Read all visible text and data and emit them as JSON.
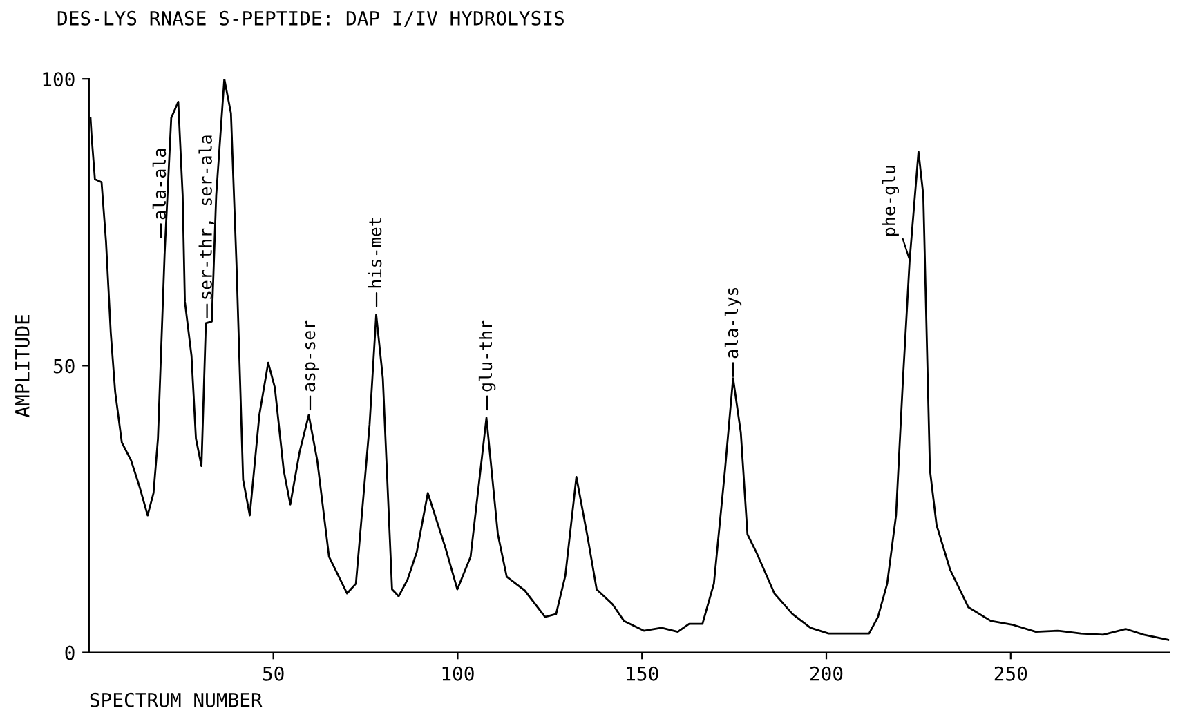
{
  "chart_data": {
    "type": "line",
    "title": "DES-LYS RNASE S-PEPTIDE: DAP I/IV HYDROLYSIS",
    "xlabel": "SPECTRUM NUMBER",
    "ylabel": "AMPLITUDE",
    "xlim": [
      0,
      293
    ],
    "xticks": [
      50,
      100,
      150,
      200,
      250
    ],
    "ylim": [
      0,
      100
    ],
    "yticks": [
      0,
      50,
      100
    ],
    "grid": false,
    "legend": false,
    "series": [
      {
        "color": "#000000",
        "x": [
          0.4,
          0.7,
          1.6,
          3.4,
          4.6,
          5.9,
          7.1,
          8.9,
          11.4,
          13.8,
          15.9,
          17.5,
          18.7,
          20.5,
          22.3,
          24.2,
          25.4,
          26,
          27.8,
          29,
          30.5,
          31.7,
          33.3,
          34.5,
          36.7,
          38.5,
          40,
          41.8,
          43.6,
          46.2,
          48.6,
          50.4,
          52.8,
          54.6,
          57.1,
          59.6,
          61.9,
          65.1,
          70,
          72.4,
          76.1,
          77.9,
          79.7,
          82.2,
          84,
          86.4,
          88.9,
          91.9,
          96.7,
          99.9,
          103.5,
          107.8,
          110.9,
          113.3,
          118.2,
          123.7,
          126.7,
          129.2,
          132.2,
          135.3,
          137.7,
          142,
          145.1,
          150.5,
          155.3,
          159.7,
          162.8,
          166.4,
          169.5,
          172.5,
          174.7,
          176.8,
          178.6,
          181,
          185.9,
          190.8,
          195.7,
          200.6,
          206.7,
          211.6,
          214,
          216.5,
          218.9,
          220.8,
          222.6,
          225,
          226.3,
          228.1,
          229.9,
          233.6,
          238.5,
          244.6,
          250.7,
          256.8,
          262.9,
          269,
          275.1,
          281.2,
          286.1,
          292.8
        ],
        "values": [
          93.2,
          90,
          82.5,
          82,
          71.7,
          55.7,
          45.4,
          36.6,
          33.5,
          28.7,
          23.9,
          27.8,
          37.3,
          69.4,
          93.2,
          96,
          79.7,
          61.2,
          51.7,
          37.3,
          32.5,
          57.4,
          57.7,
          79.7,
          100,
          94,
          67.7,
          30.1,
          23.9,
          41.4,
          50.5,
          46.2,
          31.8,
          25.8,
          34.9,
          41.4,
          33.5,
          16.7,
          10.3,
          12,
          39.7,
          58.9,
          47.8,
          11,
          9.8,
          12.7,
          17.5,
          27.8,
          18.2,
          11,
          16.7,
          40.9,
          20.6,
          13.2,
          10.8,
          6.2,
          6.7,
          13.4,
          30.6,
          19.9,
          11,
          8.4,
          5.5,
          3.8,
          4.3,
          3.6,
          5,
          5,
          12,
          31.8,
          47.8,
          38.3,
          20.6,
          17.5,
          10.3,
          6.7,
          4.3,
          3.3,
          3.3,
          3.3,
          6.2,
          12,
          23.9,
          47.8,
          68.4,
          87.3,
          79.7,
          31.8,
          22.2,
          14.4,
          7.9,
          5.5,
          4.8,
          3.6,
          3.8,
          3.3,
          3.1,
          4.1,
          3.1,
          2.2
        ]
      }
    ],
    "annotations": [
      {
        "text": "ala-ala",
        "x": 19.5,
        "y": 72
      },
      {
        "text": "ser-thr, ser-ala",
        "x": 32,
        "y": 58
      },
      {
        "text": "asp-ser",
        "x": 60,
        "y": 42
      },
      {
        "text": "his-met",
        "x": 78,
        "y": 60
      },
      {
        "text": "glu-thr",
        "x": 108,
        "y": 42
      },
      {
        "text": "ala-lys",
        "x": 174.7,
        "y": 47.8
      },
      {
        "text": "phe-glu",
        "x": 222.6,
        "y": 68.4
      }
    ]
  }
}
